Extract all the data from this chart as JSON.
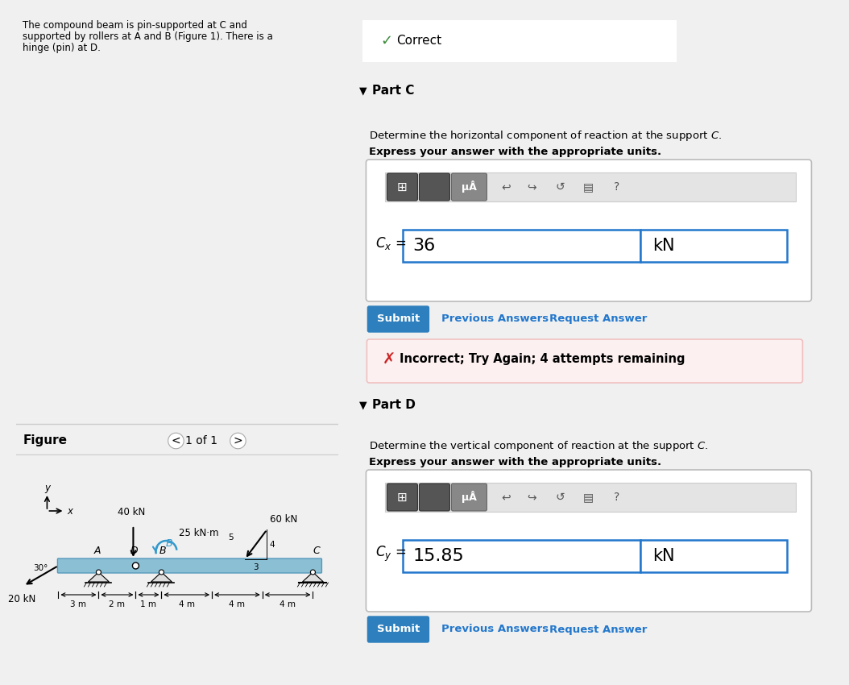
{
  "bg_color": "#f0f0f0",
  "white": "#ffffff",
  "light_blue_bg": "#cde4f0",
  "beam_color": "#8bbfd4",
  "blue_btn_color": "#2e7fbd",
  "green_check_color": "#3a8a3a",
  "red_x_color": "#cc2222",
  "link_color": "#2277cc",
  "separator_color": "#cccccc",
  "input_border": "#2277cc",
  "toolbar_bg": "#d8d8d8",
  "header_bg": "#e8e8e8",
  "incorrect_bg": "#fdf0f0",
  "incorrect_border": "#f0c0c0",
  "dark_gray_btn": "#666666",
  "part_c_label": "Part C",
  "part_d_label": "Part D",
  "correct_text": "Correct",
  "part_c_desc": "Determine the horizontal component of reaction at the support ",
  "part_d_desc": "Determine the vertical component of reaction at the support ",
  "express_text": "Express your answer with the appropriate units.",
  "cx_value": "36",
  "cy_value": "15.85",
  "unit": "kN",
  "submit_text": "Submit",
  "prev_answers": "Previous Answers",
  "request_answer": "Request Answer",
  "incorrect_text": "Incorrect; Try Again; 4 attempts remaining",
  "figure_label": "Figure",
  "page_indicator": "1 of 1",
  "force_40kN": "40 kN",
  "force_60kN": "60 kN",
  "moment_25kNm": "25 kN·m",
  "force_20kN": "20 kN",
  "label_A": "A",
  "label_B": "B",
  "label_C": "C",
  "label_D": "D",
  "dim_3m": "3 m",
  "dim_2m": "2 m",
  "dim_1m": "1 m",
  "dim_4m": "4 m",
  "ratio_5": "5",
  "ratio_4": "4",
  "ratio_3": "3",
  "angle_label": "30°",
  "prob_line1": "The compound beam is pin-supported at C and",
  "prob_line2": "supported by rollers at A and B (Figure 1). There is a",
  "prob_line3": "hinge (pin) at D."
}
